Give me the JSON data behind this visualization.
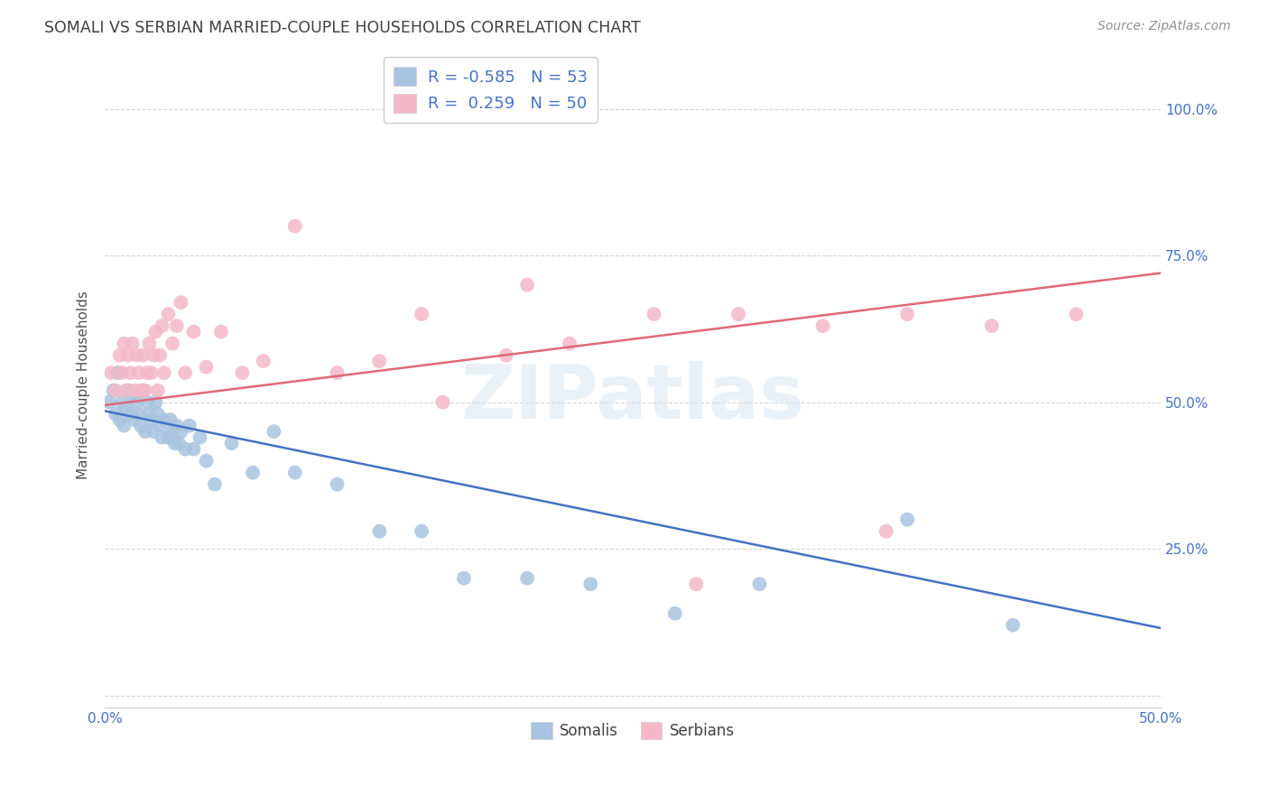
{
  "title": "SOMALI VS SERBIAN MARRIED-COUPLE HOUSEHOLDS CORRELATION CHART",
  "source": "Source: ZipAtlas.com",
  "ylabel": "Married-couple Households",
  "xlim": [
    0.0,
    0.5
  ],
  "ylim": [
    -0.02,
    1.08
  ],
  "somali_color": "#a8c4e0",
  "serbian_color": "#f4b8c8",
  "somali_line_color": "#4472c4",
  "serbian_line_color": "#e06878",
  "watermark": "ZIPatlas",
  "grid_color": "#d0d0d0",
  "background_color": "#ffffff",
  "title_color": "#404040",
  "tick_color": "#4472c4",
  "somali_x": [
    0.002,
    0.004,
    0.005,
    0.006,
    0.007,
    0.008,
    0.009,
    0.01,
    0.011,
    0.012,
    0.013,
    0.014,
    0.015,
    0.016,
    0.017,
    0.018,
    0.019,
    0.02,
    0.021,
    0.022,
    0.023,
    0.024,
    0.025,
    0.026,
    0.027,
    0.028,
    0.03,
    0.031,
    0.032,
    0.033,
    0.034,
    0.035,
    0.036,
    0.038,
    0.04,
    0.042,
    0.045,
    0.048,
    0.052,
    0.06,
    0.07,
    0.08,
    0.09,
    0.11,
    0.13,
    0.15,
    0.17,
    0.2,
    0.23,
    0.27,
    0.31,
    0.38,
    0.43
  ],
  "somali_y": [
    0.5,
    0.52,
    0.48,
    0.55,
    0.47,
    0.5,
    0.46,
    0.49,
    0.52,
    0.48,
    0.51,
    0.47,
    0.5,
    0.48,
    0.46,
    0.52,
    0.45,
    0.5,
    0.48,
    0.47,
    0.45,
    0.5,
    0.48,
    0.46,
    0.44,
    0.47,
    0.44,
    0.47,
    0.45,
    0.43,
    0.46,
    0.43,
    0.45,
    0.42,
    0.46,
    0.42,
    0.44,
    0.4,
    0.36,
    0.43,
    0.38,
    0.45,
    0.38,
    0.36,
    0.28,
    0.28,
    0.2,
    0.2,
    0.19,
    0.14,
    0.19,
    0.3,
    0.12
  ],
  "serbian_x": [
    0.003,
    0.005,
    0.007,
    0.008,
    0.009,
    0.01,
    0.011,
    0.012,
    0.013,
    0.014,
    0.015,
    0.016,
    0.017,
    0.018,
    0.019,
    0.02,
    0.021,
    0.022,
    0.023,
    0.024,
    0.025,
    0.026,
    0.027,
    0.028,
    0.03,
    0.032,
    0.034,
    0.036,
    0.038,
    0.042,
    0.048,
    0.055,
    0.065,
    0.075,
    0.09,
    0.11,
    0.13,
    0.16,
    0.19,
    0.22,
    0.26,
    0.3,
    0.34,
    0.38,
    0.42,
    0.46,
    0.37,
    0.28,
    0.2,
    0.15
  ],
  "serbian_y": [
    0.55,
    0.52,
    0.58,
    0.55,
    0.6,
    0.52,
    0.58,
    0.55,
    0.6,
    0.52,
    0.58,
    0.55,
    0.52,
    0.58,
    0.52,
    0.55,
    0.6,
    0.55,
    0.58,
    0.62,
    0.52,
    0.58,
    0.63,
    0.55,
    0.65,
    0.6,
    0.63,
    0.67,
    0.55,
    0.62,
    0.56,
    0.62,
    0.55,
    0.57,
    0.8,
    0.55,
    0.57,
    0.5,
    0.58,
    0.6,
    0.65,
    0.65,
    0.63,
    0.65,
    0.63,
    0.65,
    0.28,
    0.19,
    0.7,
    0.65
  ],
  "somali_intercept": 0.485,
  "somali_slope": -0.74,
  "serbian_intercept": 0.495,
  "serbian_slope": 0.45
}
